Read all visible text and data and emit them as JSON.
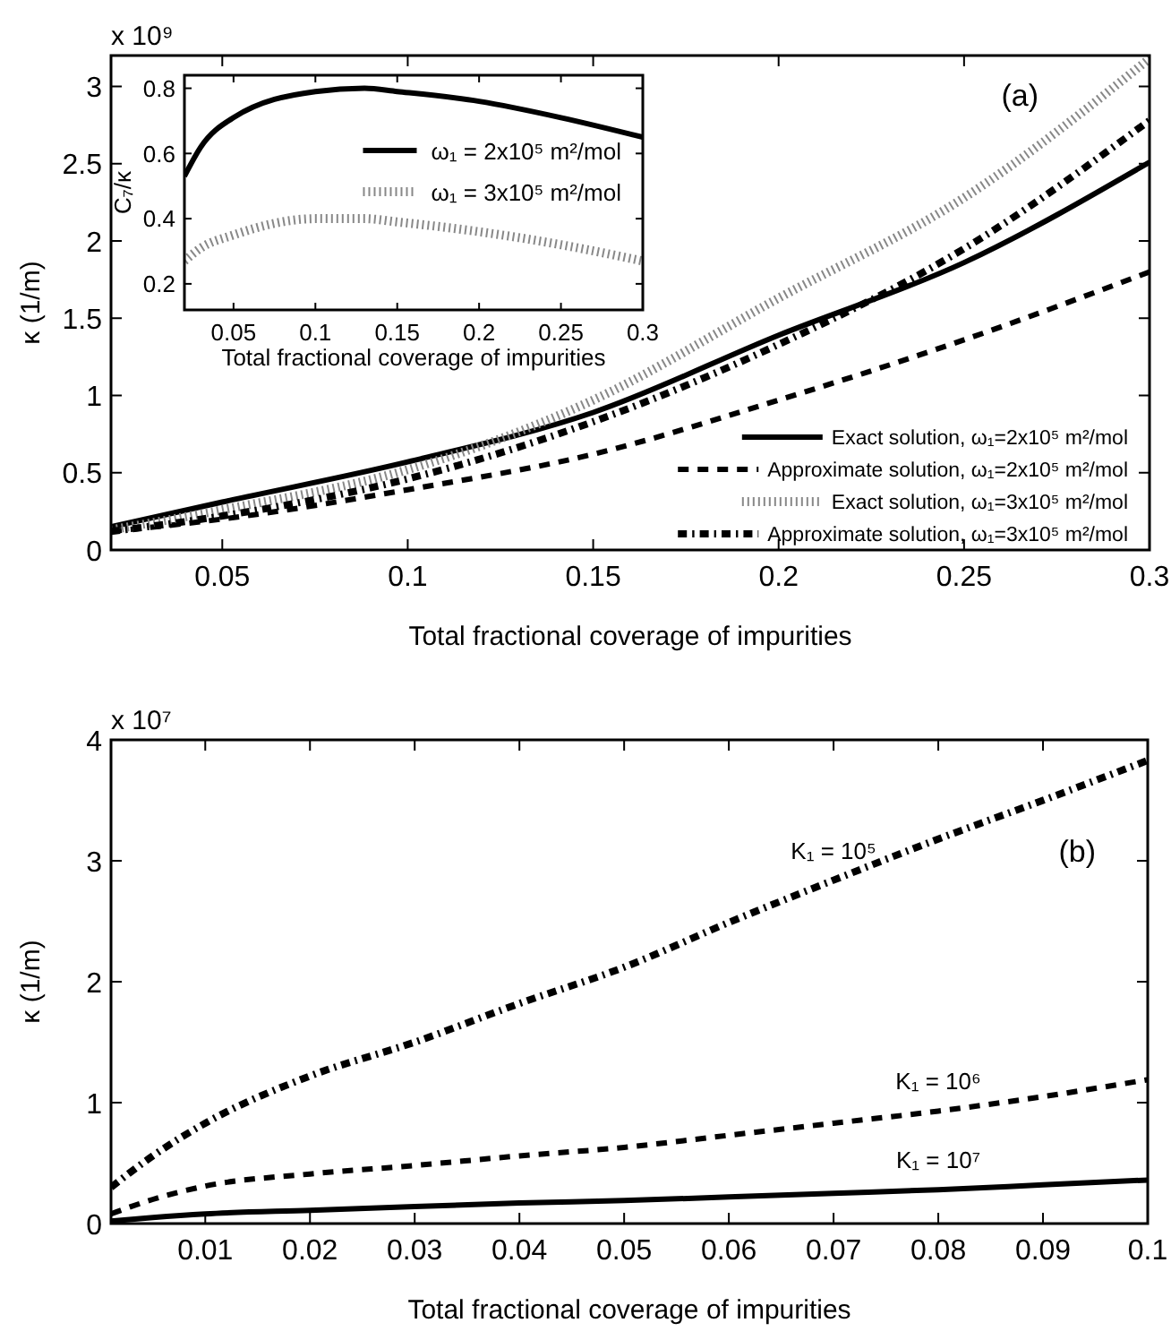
{
  "chart_data": [
    {
      "type": "line",
      "xlabel": "Total fractional coverage of impurities",
      "ylabel": "κ (1/m)",
      "annotations": [
        "x 10⁹",
        "(a)"
      ],
      "xlim": [
        0.02,
        0.3
      ],
      "ylim": [
        0,
        3.2
      ],
      "xticks": [
        0.05,
        0.1,
        0.15,
        0.2,
        0.25,
        0.3
      ],
      "yticks": [
        0,
        0.5,
        1,
        1.5,
        2,
        2.5,
        3
      ],
      "legend": "bottom right",
      "x": [
        0.02,
        0.05,
        0.1,
        0.15,
        0.2,
        0.25,
        0.3
      ],
      "series": [
        {
          "name": "Exact solution, ω₁=2x10⁵ m²/mol",
          "color": "#000000",
          "line_style": "solid",
          "values": [
            0.15,
            0.31,
            0.57,
            0.89,
            1.39,
            1.86,
            2.51
          ]
        },
        {
          "name": "Approximate solution, ω₁=2x10⁵ m²/mol",
          "color": "#000000",
          "line_style": "dashed",
          "values": [
            0.12,
            0.2,
            0.39,
            0.62,
            0.97,
            1.36,
            1.8
          ]
        },
        {
          "name": "Exact solution, ω₁=3x10⁵ m²/mol",
          "color": "#888888",
          "line_style": "dotted",
          "values": [
            0.13,
            0.26,
            0.52,
            0.97,
            1.63,
            2.28,
            3.18
          ]
        },
        {
          "name": "Approximate solution, ω₁=3x10⁵ m²/mol",
          "color": "#000000",
          "line_style": "dashdot",
          "values": [
            0.12,
            0.22,
            0.46,
            0.83,
            1.33,
            1.95,
            2.78
          ]
        }
      ]
    },
    {
      "type": "line",
      "xlabel": "Total fractional coverage of impurities",
      "ylabel": "C₇/κ",
      "xlim": [
        0.02,
        0.3
      ],
      "ylim": [
        0.12,
        0.84
      ],
      "xticks": [
        0.05,
        0.1,
        0.15,
        0.2,
        0.25,
        0.3
      ],
      "yticks": [
        0.2,
        0.4,
        0.6,
        0.8
      ],
      "legend": "top right",
      "x": [
        0.02,
        0.03,
        0.05,
        0.1,
        0.13,
        0.15,
        0.2,
        0.25,
        0.3
      ],
      "series": [
        {
          "name": "ω₁ = 2x10⁵ m²/mol",
          "color": "#000000",
          "line_style": "solid",
          "values": [
            0.53,
            0.62,
            0.71,
            0.79,
            0.8,
            0.79,
            0.76,
            0.71,
            0.65
          ]
        },
        {
          "name": "ω₁ = 3x10⁵ m²/mol",
          "color": "#888888",
          "line_style": "dotted",
          "values": [
            0.27,
            0.31,
            0.35,
            0.4,
            0.4,
            0.39,
            0.36,
            0.32,
            0.27
          ]
        }
      ]
    },
    {
      "type": "line",
      "xlabel": "Total fractional coverage of impurities",
      "ylabel": "κ (1/m)",
      "annotations": [
        "x 10⁷",
        "(b)"
      ],
      "xlim": [
        0.001,
        0.1
      ],
      "ylim": [
        0,
        4
      ],
      "xticks": [
        0.01,
        0.02,
        0.03,
        0.04,
        0.05,
        0.06,
        0.07,
        0.08,
        0.09,
        0.1
      ],
      "yticks": [
        0,
        1,
        2,
        3,
        4
      ],
      "x": [
        0.001,
        0.005,
        0.01,
        0.02,
        0.03,
        0.04,
        0.05,
        0.06,
        0.07,
        0.08,
        0.09,
        0.1
      ],
      "series": [
        {
          "name": "K₁ = 10⁵",
          "color": "#000000",
          "line_style": "dashdot",
          "values": [
            0.3,
            0.56,
            0.83,
            1.22,
            1.5,
            1.82,
            2.12,
            2.49,
            2.84,
            3.18,
            3.5,
            3.83
          ]
        },
        {
          "name": "K₁ = 10⁶",
          "color": "#000000",
          "line_style": "dashed",
          "values": [
            0.08,
            0.2,
            0.31,
            0.41,
            0.48,
            0.56,
            0.63,
            0.73,
            0.83,
            0.93,
            1.05,
            1.19
          ]
        },
        {
          "name": "K₁ = 10⁷",
          "color": "#000000",
          "line_style": "solid",
          "values": [
            0.02,
            0.05,
            0.08,
            0.11,
            0.14,
            0.17,
            0.19,
            0.22,
            0.25,
            0.28,
            0.32,
            0.36
          ]
        }
      ]
    }
  ]
}
